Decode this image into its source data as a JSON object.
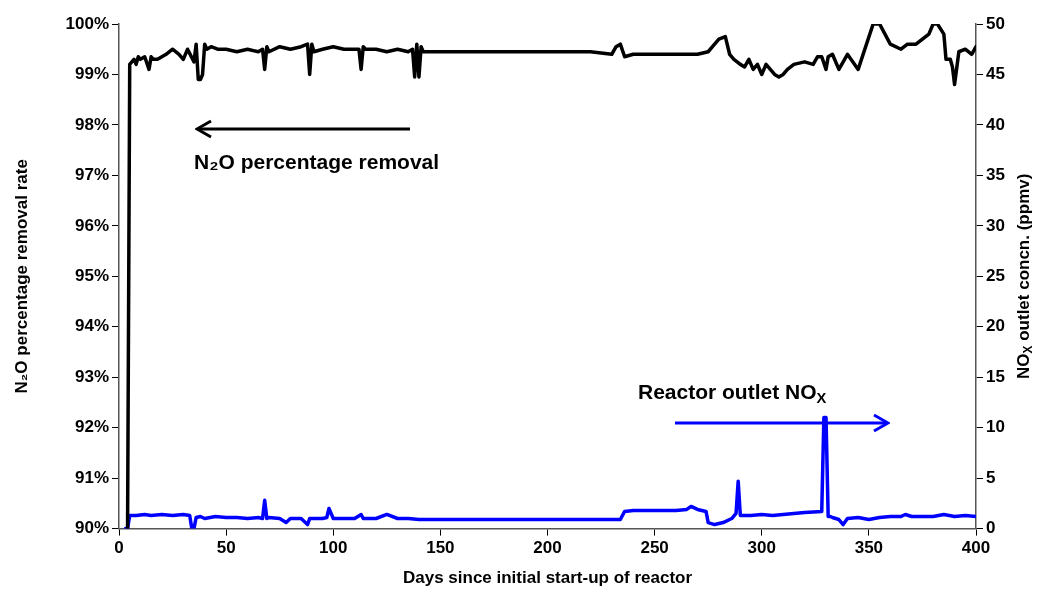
{
  "chart_data": {
    "type": "line",
    "xlabel": "Days since initial start-up of reactor",
    "ylabel": "N₂O percentage removal rate",
    "y2label": "NO$_{X}$ outlet concn. (ppmv)",
    "xlim": [
      0,
      400
    ],
    "xticks": [
      0,
      50,
      100,
      150,
      200,
      250,
      300,
      350,
      400
    ],
    "ylim": [
      90,
      100
    ],
    "yticks": [
      {
        "value": 90,
        "label": "90%"
      },
      {
        "value": 91,
        "label": "91%"
      },
      {
        "value": 92,
        "label": "92%"
      },
      {
        "value": 93,
        "label": "93%"
      },
      {
        "value": 94,
        "label": "94%"
      },
      {
        "value": 95,
        "label": "95%"
      },
      {
        "value": 96,
        "label": "96%"
      },
      {
        "value": 97,
        "label": "97%"
      },
      {
        "value": 98,
        "label": "98%"
      },
      {
        "value": 99,
        "label": "99%"
      },
      {
        "value": 100,
        "label": "100%"
      }
    ],
    "y2lim": [
      0,
      50
    ],
    "y2ticks": [
      0,
      5,
      10,
      15,
      20,
      25,
      30,
      35,
      40,
      45,
      50
    ],
    "grid": false,
    "legend": "top left",
    "marker": "none",
    "line_style": "solid",
    "series": [
      {
        "name": "N₂O percentage removal",
        "color": "#000000",
        "x": [
          4,
          5,
          6,
          7,
          8,
          9,
          10,
          12,
          14,
          15,
          16,
          18,
          20,
          22,
          25,
          28,
          30,
          32,
          35,
          36,
          37,
          38,
          39,
          40,
          41,
          43,
          46,
          50,
          55,
          60,
          65,
          67,
          68,
          69,
          70,
          75,
          80,
          85,
          88,
          89,
          90,
          91,
          95,
          100,
          105,
          110,
          112,
          113,
          114,
          115,
          120,
          125,
          130,
          135,
          137,
          138,
          139,
          140,
          141,
          142,
          145,
          150,
          160,
          170,
          180,
          190,
          200,
          210,
          220,
          230,
          232,
          234,
          236,
          240,
          250,
          260,
          270,
          275,
          277,
          280,
          283,
          285,
          287,
          290,
          292,
          294,
          296,
          298,
          300,
          302,
          304,
          306,
          308,
          310,
          312,
          315,
          320,
          324,
          326,
          328,
          330,
          331,
          333,
          336,
          340,
          345,
          352,
          355,
          360,
          365,
          368,
          372,
          378,
          380,
          382,
          385,
          386,
          388,
          389,
          390,
          392,
          395,
          398,
          400
        ],
        "values": [
          90,
          99.2,
          99.25,
          99.3,
          99.2,
          99.35,
          99.3,
          99.35,
          99.1,
          99.35,
          99.3,
          99.3,
          99.35,
          99.4,
          99.5,
          99.4,
          99.3,
          99.5,
          99.25,
          99.6,
          98.9,
          98.9,
          99.0,
          99.6,
          99.5,
          99.55,
          99.5,
          99.5,
          99.45,
          99.5,
          99.45,
          99.5,
          99.1,
          99.55,
          99.45,
          99.55,
          99.5,
          99.55,
          99.6,
          99.0,
          99.6,
          99.45,
          99.5,
          99.55,
          99.5,
          99.5,
          99.5,
          99.1,
          99.55,
          99.5,
          99.5,
          99.45,
          99.5,
          99.45,
          99.5,
          98.95,
          99.6,
          98.95,
          99.55,
          99.45,
          99.45,
          99.45,
          99.45,
          99.45,
          99.45,
          99.45,
          99.45,
          99.45,
          99.45,
          99.4,
          99.55,
          99.6,
          99.35,
          99.4,
          99.4,
          99.4,
          99.4,
          99.45,
          99.55,
          99.7,
          99.75,
          99.4,
          99.3,
          99.2,
          99.15,
          99.3,
          99.1,
          99.2,
          99.0,
          99.2,
          99.1,
          99.0,
          98.95,
          99.0,
          99.1,
          99.2,
          99.25,
          99.2,
          99.35,
          99.35,
          99.1,
          99.35,
          99.4,
          99.1,
          99.4,
          99.1,
          100,
          100,
          99.6,
          99.5,
          99.6,
          99.6,
          99.8,
          100,
          100,
          99.8,
          99.3,
          99.3,
          99.15,
          98.8,
          99.45,
          99.5,
          99.4,
          99.55
        ]
      },
      {
        "name": "Reactor outlet NO$_{X}$",
        "color": "#0000ff",
        "axis": "y2",
        "x": [
          3,
          4,
          5,
          8,
          12,
          15,
          20,
          25,
          30,
          33,
          34,
          35,
          36,
          38,
          40,
          45,
          50,
          55,
          60,
          65,
          67,
          68,
          69,
          70,
          75,
          78,
          80,
          85,
          88,
          89,
          90,
          95,
          97,
          98,
          100,
          105,
          110,
          113,
          114,
          115,
          120,
          125,
          130,
          135,
          140,
          150,
          200,
          234,
          236,
          240,
          250,
          260,
          265,
          267,
          270,
          274,
          275,
          278,
          282,
          286,
          288,
          289,
          290,
          291,
          295,
          300,
          305,
          310,
          320,
          328,
          329,
          330,
          331,
          332,
          333,
          336,
          338,
          340,
          345,
          350,
          355,
          360,
          365,
          367,
          370,
          380,
          385,
          390,
          395,
          400
        ],
        "values": [
          0,
          0,
          1.3,
          1.3,
          1.4,
          1.3,
          1.4,
          1.3,
          1.4,
          1.3,
          0,
          0,
          1.1,
          1.2,
          1.0,
          1.2,
          1.1,
          1.1,
          1.0,
          1.1,
          1.0,
          2.8,
          1.0,
          1.1,
          1.0,
          0.6,
          1.0,
          1.0,
          0.4,
          1.0,
          1.0,
          1.0,
          1.1,
          2.0,
          1.0,
          1.0,
          1.0,
          1.4,
          1.0,
          1.0,
          1.0,
          1.4,
          1.0,
          1.0,
          0.9,
          0.9,
          0.9,
          0.9,
          1.7,
          1.8,
          1.8,
          1.8,
          1.9,
          2.2,
          1.9,
          1.7,
          0.6,
          0.4,
          0.6,
          1.0,
          1.5,
          4.7,
          1.3,
          1.3,
          1.3,
          1.4,
          1.3,
          1.4,
          1.6,
          1.7,
          11.0,
          11.0,
          1.2,
          1.2,
          1.1,
          0.9,
          0.4,
          1.0,
          1.1,
          0.9,
          1.1,
          1.2,
          1.2,
          1.4,
          1.2,
          1.2,
          1.4,
          1.2,
          1.3,
          1.2
        ]
      }
    ]
  }
}
